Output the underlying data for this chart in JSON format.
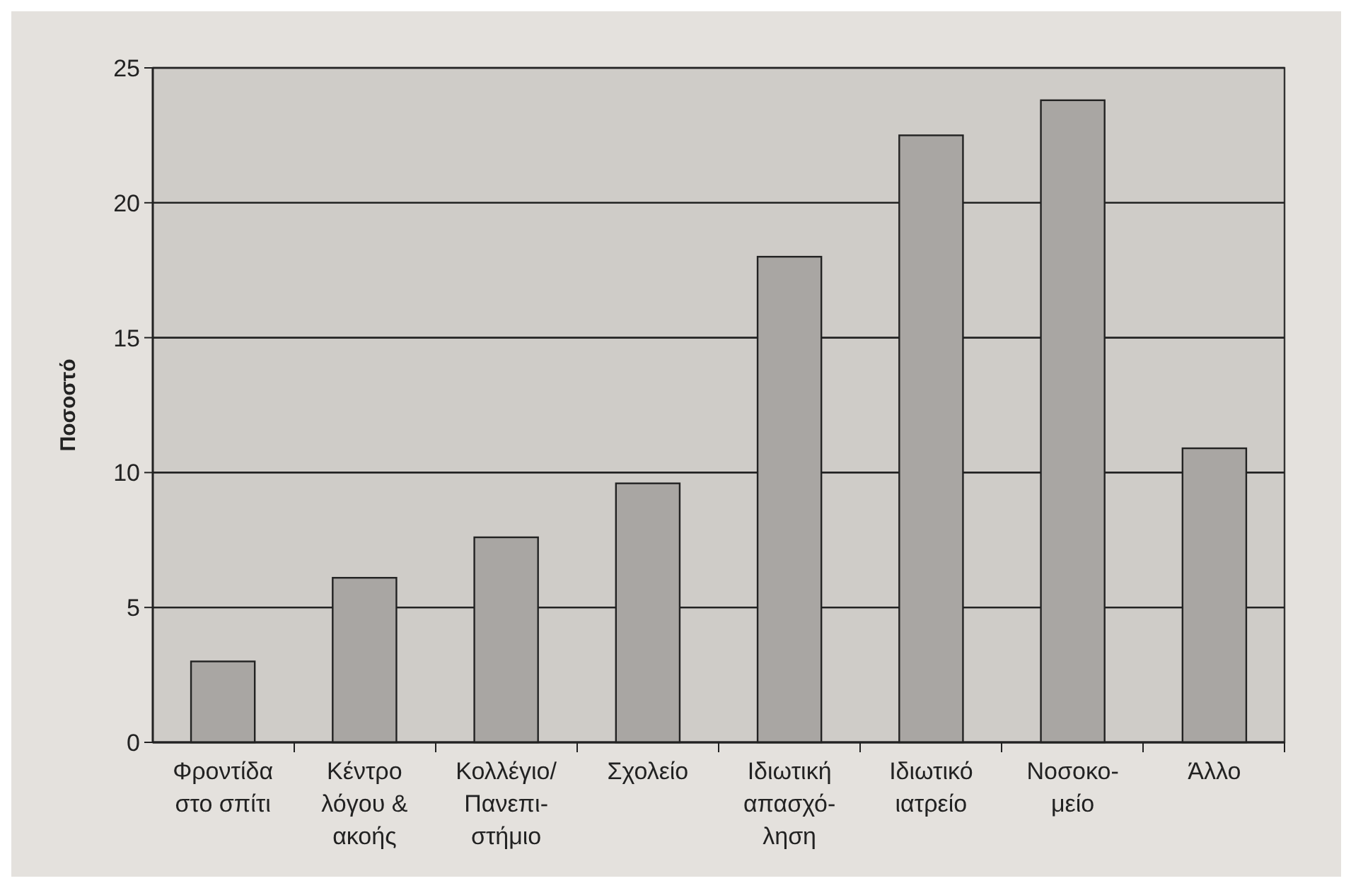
{
  "chart_data": {
    "type": "bar",
    "ylabel": "Ποσοστό",
    "categories": [
      "Φροντίδα\nστο σπίτι",
      "Κέντρο\nλόγου &\nακοής",
      "Κολλέγιο/\nΠανεπι-\nστήμιο",
      "Σχολείο",
      "Ιδιωτική\nαπασχό-\nληση",
      "Ιδιωτικό\nιατρείο",
      "Νοσοκο-\nμείο",
      "Άλλο"
    ],
    "values": [
      3,
      6.1,
      7.6,
      9.6,
      18,
      22.5,
      23.8,
      10.9
    ],
    "color": "#a9a6a3",
    "ylim": [
      0,
      25
    ],
    "yticks": [
      0,
      5,
      10,
      15,
      20,
      25
    ],
    "grid": "y"
  }
}
